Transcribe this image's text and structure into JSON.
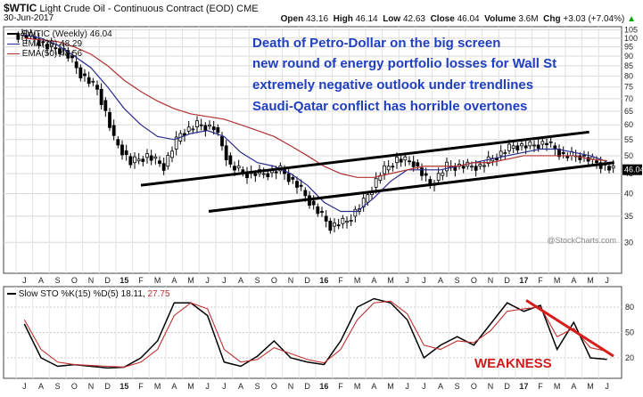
{
  "header": {
    "symbol": "$WTIC",
    "name": "Light Crude Oil - Continuous Contract (EOD)",
    "exchange": "CME",
    "date": "30-Jun-2017",
    "open_label": "Open",
    "open": "43.16",
    "high_label": "High",
    "high": "46.14",
    "low_label": "Low",
    "low": "42.63",
    "close_label": "Close",
    "close": "46.04",
    "volume_label": "Volume",
    "volume": "3.6M",
    "chg_label": "Chg",
    "chg": "+3.03 (+7.04%)",
    "chg_arrow": "▲"
  },
  "legend": {
    "price": "$WTIC (Weekly) 46.04",
    "ema20": "EMA(20) 48.29",
    "ema50": "EMA(50) 48.56"
  },
  "annotations": [
    "Death of Petro-Dollar on the big screen",
    "new round of energy portfolio losses for Wall St",
    "extremely negative outlook under trendlines",
    "Saudi-Qatar conflict has horrible overtones"
  ],
  "weakness_label": "WEAKNESS",
  "brand": "@StockCharts.com",
  "stoch_legend": {
    "label": "Slow STO %K(15) %D(5)",
    "k": "18.11",
    "d": "27.75"
  },
  "colors": {
    "ema20": "#2a2a8c",
    "ema50": "#b03030",
    "candle": "#000000",
    "annotation": "#1f3fbf",
    "weakness": "#d11b1b",
    "stoch_k": "#000000",
    "stoch_d": "#c03030",
    "trend": "#000000",
    "stoch_trend": "#d91c1c"
  },
  "x_axis_labels": [
    "J",
    "A",
    "S",
    "O",
    "N",
    "D",
    "15",
    "F",
    "M",
    "A",
    "M",
    "J",
    "J",
    "A",
    "S",
    "O",
    "N",
    "D",
    "16",
    "F",
    "M",
    "A",
    "M",
    "J",
    "J",
    "A",
    "S",
    "O",
    "N",
    "D",
    "17",
    "F",
    "M",
    "A",
    "M",
    "J"
  ],
  "chart_data": [
    {
      "type": "candlestick",
      "title": "$WTIC (Weekly) 46.04",
      "y_scale": "log",
      "ylim": [
        25,
        107
      ],
      "y_ticks": [
        30,
        35,
        40,
        45,
        50,
        55,
        60,
        65,
        70,
        75,
        80,
        85,
        90,
        95,
        100,
        105
      ],
      "grid": true,
      "x": [
        "2014-07",
        "2014-08",
        "2014-09",
        "2014-10",
        "2014-11",
        "2014-12",
        "2015-01",
        "2015-02",
        "2015-03",
        "2015-04",
        "2015-05",
        "2015-06",
        "2015-07",
        "2015-08",
        "2015-09",
        "2015-10",
        "2015-11",
        "2015-12",
        "2016-01",
        "2016-02",
        "2016-03",
        "2016-04",
        "2016-05",
        "2016-06",
        "2016-07",
        "2016-08",
        "2016-09",
        "2016-10",
        "2016-11",
        "2016-12",
        "2017-01",
        "2017-02",
        "2017-03",
        "2017-04",
        "2017-05",
        "2017-06"
      ],
      "close": [
        101,
        95,
        93,
        81,
        74,
        55,
        48,
        50,
        47,
        57,
        60,
        59,
        47,
        45,
        45,
        46,
        42,
        37,
        33,
        34,
        38,
        45,
        49,
        48,
        42,
        47,
        47,
        47,
        50,
        53,
        53,
        54,
        50,
        50,
        48,
        46
      ],
      "series": [
        {
          "name": "EMA(20)",
          "values": [
            102,
            100,
            96,
            90,
            84,
            75,
            66,
            60,
            56,
            55,
            57,
            58,
            56,
            51,
            48,
            47,
            45,
            42,
            38,
            36,
            36,
            39,
            43,
            46,
            46,
            46,
            47,
            48,
            49,
            50,
            51,
            52,
            52,
            51,
            50,
            48.29
          ]
        },
        {
          "name": "EMA(50)",
          "values": [
            100,
            99,
            98,
            95,
            91,
            85,
            78,
            73,
            69,
            66,
            64,
            63,
            62,
            60,
            58,
            56,
            53,
            50,
            47,
            45,
            44,
            44,
            45,
            46,
            47,
            47,
            47,
            48,
            48,
            49,
            50,
            50,
            50,
            50,
            49,
            48.56
          ]
        }
      ],
      "last": 46.04
    },
    {
      "type": "line",
      "title": "Slow STO %K(15) %D(5)",
      "ylim": [
        0,
        100
      ],
      "y_ticks": [
        20,
        50,
        80
      ],
      "series": [
        {
          "name": "%K(15)",
          "values": [
            60,
            20,
            10,
            12,
            10,
            8,
            9,
            20,
            40,
            85,
            85,
            70,
            15,
            10,
            22,
            40,
            20,
            15,
            12,
            40,
            80,
            90,
            85,
            65,
            20,
            35,
            45,
            35,
            60,
            85,
            75,
            82,
            30,
            62,
            20,
            18.11
          ]
        },
        {
          "name": "%D(5)",
          "values": [
            65,
            30,
            15,
            12,
            11,
            10,
            9,
            15,
            30,
            70,
            85,
            78,
            30,
            15,
            18,
            32,
            25,
            18,
            14,
            30,
            65,
            85,
            87,
            72,
            35,
            30,
            40,
            38,
            52,
            75,
            78,
            80,
            45,
            55,
            32,
            27.75
          ]
        }
      ]
    }
  ]
}
